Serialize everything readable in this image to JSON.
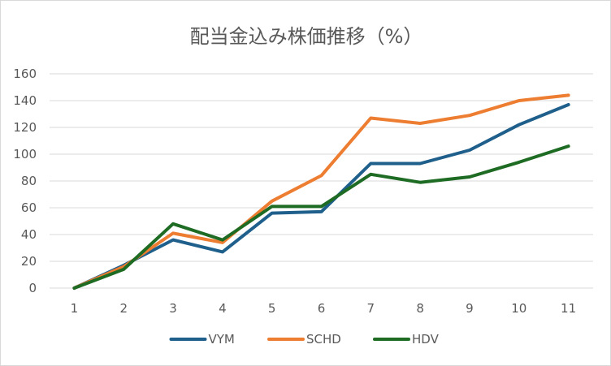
{
  "chart_data": {
    "type": "line",
    "title": "配当金込み株価推移（%）",
    "x": [
      "1",
      "2",
      "3",
      "4",
      "5",
      "6",
      "7",
      "8",
      "9",
      "10",
      "11"
    ],
    "ylim": [
      0,
      160
    ],
    "yticks": [
      "0",
      "20",
      "40",
      "60",
      "80",
      "100",
      "120",
      "140",
      "160"
    ],
    "grid": true,
    "legend_position": "bottom",
    "series": [
      {
        "name": "VYM",
        "color": "#1f5f8b",
        "values": [
          0,
          17,
          36,
          27,
          56,
          57,
          93,
          93,
          103,
          122,
          137
        ]
      },
      {
        "name": "SCHD",
        "color": "#ed7d31",
        "values": [
          0,
          16,
          41,
          34,
          65,
          84,
          127,
          123,
          129,
          140,
          144
        ]
      },
      {
        "name": "HDV",
        "color": "#1e6b24",
        "values": [
          0,
          14,
          48,
          36,
          61,
          61,
          85,
          79,
          83,
          94,
          106
        ]
      }
    ]
  }
}
